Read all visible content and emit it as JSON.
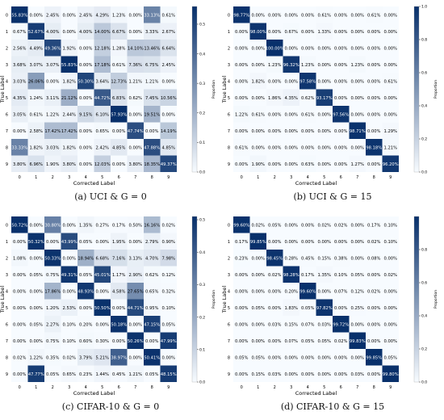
{
  "captions": [
    "(a) UCI & G = 0",
    "(b) UCI & G = 15",
    "(c) CIFAR-10 & G = 0",
    "(d) CIFAR-10 & G = 15"
  ],
  "colors": {
    "low": "#f7fbff",
    "high": "#08306b",
    "text_dark": "#000000",
    "text_light": "#ffffff"
  },
  "chart_data": [
    {
      "type": "heatmap",
      "title": "",
      "xlabel": "Corrected Label",
      "ylabel": "True Label",
      "colorbar_label": "Proportion",
      "x": [
        "0",
        "1",
        "2",
        "3",
        "4",
        "5",
        "6",
        "7",
        "8",
        "9"
      ],
      "y": [
        "0",
        "1",
        "2",
        "3",
        "4",
        "5",
        "6",
        "7",
        "8",
        "9"
      ],
      "vmin": 0,
      "vmax": 0.56,
      "colorbar_ticks": [
        0.0,
        0.1,
        0.2,
        0.3,
        0.4,
        0.5
      ],
      "values": [
        [
          55.83,
          0.0,
          2.45,
          0.0,
          2.45,
          4.29,
          1.23,
          0.0,
          33.13,
          0.61
        ],
        [
          0.67,
          52.67,
          4.0,
          0.0,
          4.0,
          14.0,
          6.67,
          0.0,
          3.33,
          2.67
        ],
        [
          2.56,
          4.49,
          49.36,
          1.92,
          0.0,
          12.18,
          1.28,
          14.1,
          13.46,
          6.64
        ],
        [
          3.68,
          3.07,
          3.07,
          55.83,
          0.0,
          17.18,
          0.61,
          7.36,
          6.75,
          2.45
        ],
        [
          3.03,
          26.06,
          0.0,
          1.82,
          50.3,
          3.64,
          12.73,
          1.21,
          1.21,
          0.0
        ],
        [
          4.35,
          1.24,
          3.11,
          21.12,
          0.0,
          44.72,
          6.83,
          0.62,
          7.45,
          10.56
        ],
        [
          3.05,
          0.61,
          1.22,
          2.44,
          9.15,
          6.1,
          57.93,
          0.0,
          19.51,
          0.0
        ],
        [
          0.0,
          2.58,
          17.42,
          17.42,
          0.0,
          0.65,
          0.0,
          47.74,
          0.0,
          14.19
        ],
        [
          33.33,
          1.82,
          3.03,
          1.82,
          0.0,
          2.42,
          4.85,
          0.0,
          47.88,
          4.85
        ],
        [
          3.8,
          6.96,
          1.9,
          3.8,
          0.0,
          12.03,
          0.0,
          3.8,
          18.35,
          49.37
        ]
      ]
    },
    {
      "type": "heatmap",
      "title": "",
      "xlabel": "Corrected Label",
      "ylabel": "True Label",
      "colorbar_label": "Proportion",
      "x": [
        "0",
        "1",
        "2",
        "3",
        "4",
        "5",
        "6",
        "7",
        "8",
        "9"
      ],
      "y": [
        "0",
        "1",
        "2",
        "3",
        "4",
        "5",
        "6",
        "7",
        "8",
        "9"
      ],
      "vmin": 0,
      "vmax": 1.0,
      "colorbar_ticks": [
        0.0,
        0.2,
        0.4,
        0.6,
        0.8,
        1.0
      ],
      "values": [
        [
          98.77,
          0.0,
          0.0,
          0.0,
          0.0,
          0.61,
          0.0,
          0.0,
          0.61,
          0.0
        ],
        [
          0.0,
          98.0,
          0.0,
          0.67,
          0.0,
          1.33,
          0.0,
          0.0,
          0.0,
          0.0
        ],
        [
          0.0,
          0.0,
          100.0,
          0.0,
          0.0,
          0.0,
          0.0,
          0.0,
          0.0,
          0.0
        ],
        [
          0.0,
          0.0,
          1.23,
          96.32,
          1.23,
          0.0,
          0.0,
          1.23,
          0.0,
          0.0
        ],
        [
          0.0,
          1.82,
          0.0,
          0.0,
          97.58,
          0.0,
          0.0,
          0.0,
          0.0,
          0.61
        ],
        [
          0.0,
          0.0,
          1.86,
          4.35,
          0.62,
          93.17,
          0.0,
          0.0,
          0.0,
          0.0
        ],
        [
          1.22,
          0.61,
          0.0,
          0.0,
          0.61,
          0.0,
          97.56,
          0.0,
          0.0,
          0.0
        ],
        [
          0.0,
          0.0,
          0.0,
          0.0,
          0.0,
          0.0,
          0.0,
          98.71,
          0.0,
          1.29
        ],
        [
          0.61,
          0.0,
          0.0,
          0.0,
          0.0,
          0.0,
          0.0,
          0.0,
          98.18,
          1.21
        ],
        [
          0.0,
          1.9,
          0.0,
          0.0,
          0.63,
          0.0,
          0.0,
          1.27,
          0.0,
          96.2
        ]
      ]
    },
    {
      "type": "heatmap",
      "title": "",
      "xlabel": "Corrected Label",
      "ylabel": "True Label",
      "colorbar_label": "Proportion",
      "x": [
        "0",
        "1",
        "2",
        "3",
        "4",
        "5",
        "6",
        "7",
        "8",
        "9"
      ],
      "y": [
        "0",
        "1",
        "2",
        "3",
        "4",
        "5",
        "6",
        "7",
        "8",
        "9"
      ],
      "vmin": 0,
      "vmax": 0.51,
      "colorbar_ticks": [
        0.0,
        0.1,
        0.2,
        0.3,
        0.4,
        0.5
      ],
      "values": [
        [
          50.72,
          0.0,
          30.8,
          0.0,
          1.35,
          0.27,
          0.17,
          0.5,
          16.16,
          0.02
        ],
        [
          0.0,
          50.32,
          0.0,
          43.99,
          0.05,
          0.0,
          1.95,
          0.0,
          2.79,
          0.9
        ],
        [
          1.08,
          0.0,
          50.33,
          0.0,
          18.94,
          6.68,
          7.16,
          3.13,
          4.7,
          7.98
        ],
        [
          0.0,
          0.05,
          0.75,
          49.31,
          0.05,
          45.01,
          1.17,
          2.9,
          0.62,
          0.12
        ],
        [
          0.0,
          0.0,
          17.86,
          0.0,
          48.93,
          0.0,
          4.58,
          27.65,
          0.65,
          0.32
        ],
        [
          0.0,
          0.0,
          1.2,
          2.53,
          0.0,
          50.5,
          0.0,
          44.71,
          0.95,
          0.1
        ],
        [
          0.0,
          0.05,
          2.27,
          0.1,
          0.2,
          0.0,
          50.18,
          0.0,
          47.15,
          0.05
        ],
        [
          0.0,
          0.0,
          0.75,
          0.1,
          0.6,
          0.3,
          0.0,
          50.26,
          0.0,
          47.99
        ],
        [
          0.02,
          1.22,
          0.35,
          0.02,
          3.79,
          5.21,
          38.97,
          0.0,
          50.41,
          0.0
        ],
        [
          0.0,
          47.77,
          0.05,
          0.65,
          0.23,
          1.44,
          0.45,
          1.21,
          0.05,
          48.15
        ]
      ]
    },
    {
      "type": "heatmap",
      "title": "",
      "xlabel": "Corrected Label",
      "ylabel": "True Label",
      "colorbar_label": "Proportion",
      "x": [
        "0",
        "1",
        "2",
        "3",
        "4",
        "5",
        "6",
        "7",
        "8",
        "9"
      ],
      "y": [
        "0",
        "1",
        "2",
        "3",
        "4",
        "5",
        "6",
        "7",
        "8",
        "9"
      ],
      "vmin": 0,
      "vmax": 1.0,
      "colorbar_ticks": [
        0.0,
        0.2,
        0.4,
        0.6,
        0.8
      ],
      "values": [
        [
          99.6,
          0.02,
          0.05,
          0.0,
          0.0,
          0.02,
          0.02,
          0.0,
          0.17,
          0.1
        ],
        [
          0.17,
          99.85,
          0.0,
          0.0,
          0.0,
          0.0,
          0.0,
          0.0,
          0.02,
          0.1
        ],
        [
          0.23,
          0.0,
          98.45,
          0.28,
          0.45,
          0.15,
          0.38,
          0.0,
          0.08,
          0.0
        ],
        [
          0.0,
          0.0,
          0.02,
          98.28,
          0.17,
          1.35,
          0.1,
          0.05,
          0.0,
          0.02
        ],
        [
          0.0,
          0.0,
          0.0,
          0.2,
          99.6,
          0.0,
          0.07,
          0.12,
          0.02,
          0.0
        ],
        [
          0.0,
          0.05,
          0.0,
          1.83,
          0.05,
          97.82,
          0.0,
          0.25,
          0.0,
          0.0
        ],
        [
          0.0,
          0.0,
          0.03,
          0.15,
          0.07,
          0.03,
          99.72,
          0.0,
          0.0,
          0.0
        ],
        [
          0.0,
          0.0,
          0.0,
          0.07,
          0.05,
          0.05,
          0.02,
          99.83,
          0.0,
          0.0
        ],
        [
          0.05,
          0.05,
          0.0,
          0.0,
          0.0,
          0.0,
          0.0,
          0.0,
          99.85,
          0.05
        ],
        [
          0.0,
          0.15,
          0.03,
          0.0,
          0.0,
          0.0,
          0.0,
          0.03,
          0.0,
          99.8
        ]
      ]
    }
  ]
}
